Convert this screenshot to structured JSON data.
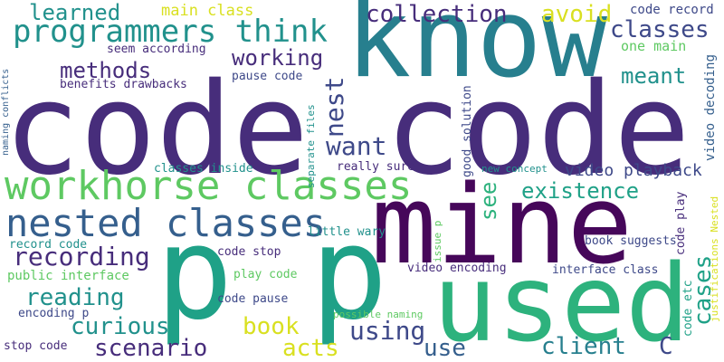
{
  "palette": {
    "dark_purple": "#46075a",
    "purple": "#472d7b",
    "indigo": "#3e4989",
    "blue": "#355f8d",
    "teal": "#277f8e",
    "cyan_teal": "#21918c",
    "green_teal": "#1fa187",
    "green": "#2db27d",
    "light_green": "#5ec962",
    "lime": "#addc30",
    "yellow": "#d9e021",
    "bright_yellow": "#e2e418"
  },
  "words": [
    {
      "text": "code code",
      "color": "#472d7b"
    },
    {
      "text": "know",
      "color": "#277f8e"
    },
    {
      "text": "mine",
      "color": "#46075a"
    },
    {
      "text": "p p",
      "color": "#1fa187"
    },
    {
      "text": "used",
      "color": "#2db27d"
    },
    {
      "text": "workhorse classes",
      "color": "#5ec962"
    },
    {
      "text": "nested classes",
      "color": "#355f8d"
    },
    {
      "text": "programmers think",
      "color": "#21918c"
    },
    {
      "text": "learned",
      "color": "#21918c"
    },
    {
      "text": "main class",
      "color": "#d9e021"
    },
    {
      "text": "collection",
      "color": "#472d7b"
    },
    {
      "text": "avoid",
      "color": "#d9e021"
    },
    {
      "text": "code record",
      "color": "#3e4989"
    },
    {
      "text": "classes",
      "color": "#3e4989"
    },
    {
      "text": "one main",
      "color": "#5ec962"
    },
    {
      "text": "seem according",
      "color": "#472d7b"
    },
    {
      "text": "working",
      "color": "#472d7b"
    },
    {
      "text": "methods",
      "color": "#472d7b"
    },
    {
      "text": "meant",
      "color": "#21918c"
    },
    {
      "text": "benefits drawbacks",
      "color": "#472d7b"
    },
    {
      "text": "pause code",
      "color": "#3e4989"
    },
    {
      "text": "nest",
      "color": "#3e4989"
    },
    {
      "text": "want",
      "color": "#3e4989"
    },
    {
      "text": "video playback",
      "color": "#3e4989"
    },
    {
      "text": "existence",
      "color": "#1fa187"
    },
    {
      "text": "see",
      "color": "#2db27d"
    },
    {
      "text": "recording",
      "color": "#472d7b"
    },
    {
      "text": "reading",
      "color": "#21918c"
    },
    {
      "text": "curious",
      "color": "#21918c"
    },
    {
      "text": "scenario",
      "color": "#472d7b"
    },
    {
      "text": "book",
      "color": "#d9e021"
    },
    {
      "text": "acts",
      "color": "#d9e021"
    },
    {
      "text": "using",
      "color": "#3e4989"
    },
    {
      "text": "use",
      "color": "#355f8d"
    },
    {
      "text": "client",
      "color": "#277f8e"
    },
    {
      "text": "C",
      "color": "#3e4989"
    },
    {
      "text": "cases",
      "color": "#1fa187"
    },
    {
      "text": "classes inside",
      "color": "#21918c"
    },
    {
      "text": "really sure",
      "color": "#472d7b"
    },
    {
      "text": "little wary",
      "color": "#21918c"
    },
    {
      "text": "record code",
      "color": "#21918c"
    },
    {
      "text": "public interface",
      "color": "#5ec962"
    },
    {
      "text": "code stop",
      "color": "#472d7b"
    },
    {
      "text": "play code",
      "color": "#5ec962"
    },
    {
      "text": "code pause",
      "color": "#3e4989"
    },
    {
      "text": "encoding p",
      "color": "#3e4989"
    },
    {
      "text": "stop code",
      "color": "#472d7b"
    },
    {
      "text": "possible naming",
      "color": "#5ec962"
    },
    {
      "text": "video encoding",
      "color": "#472d7b"
    },
    {
      "text": "interface class",
      "color": "#3e4989"
    },
    {
      "text": "book suggests",
      "color": "#3e4989"
    },
    {
      "text": "new concept",
      "color": "#21918c"
    },
    {
      "text": "naming conflicts",
      "color": "#355f8d"
    },
    {
      "text": "separate files",
      "color": "#21918c"
    },
    {
      "text": "good solution",
      "color": "#3e4989"
    },
    {
      "text": "issue p",
      "color": "#5ec962"
    },
    {
      "text": "code play",
      "color": "#472d7b"
    },
    {
      "text": "code etc",
      "color": "#1fa187"
    },
    {
      "text": "video decoding",
      "color": "#355f8d"
    },
    {
      "text": "justifications Nested",
      "color": "#d9e021"
    }
  ]
}
